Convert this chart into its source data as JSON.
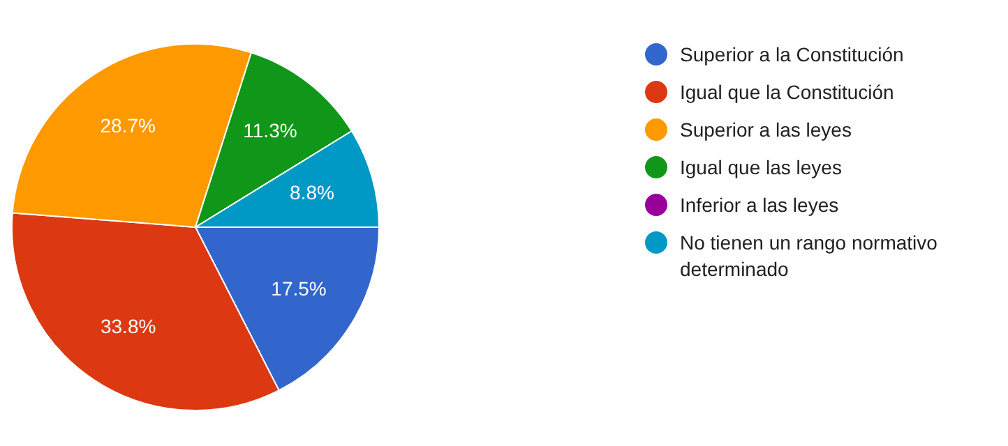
{
  "chart_data": {
    "type": "pie",
    "categories": [
      "Superior a la Constitución",
      "Igual que la Constitución",
      "Superior a las leyes",
      "Igual que las leyes",
      "Inferior a las leyes",
      "No tienen un rango normativo determinado"
    ],
    "values": [
      17.5,
      33.8,
      28.7,
      11.3,
      0,
      8.8
    ],
    "colors": [
      "#3366cc",
      "#dc3912",
      "#ff9900",
      "#109618",
      "#990099",
      "#0099c6"
    ],
    "value_labels": [
      "17.5%",
      "33.8%",
      "28.7%",
      "11.3%",
      null,
      "8.8%"
    ],
    "legend": "right"
  }
}
